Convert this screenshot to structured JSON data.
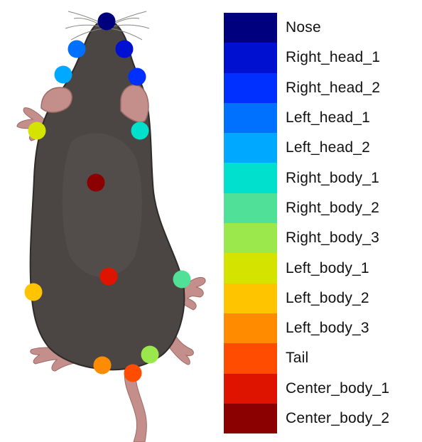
{
  "keypoints": [
    {
      "label": "Nose",
      "color": "#00007f"
    },
    {
      "label": "Right_head_1",
      "color": "#0010d0"
    },
    {
      "label": "Right_head_2",
      "color": "#0030ff"
    },
    {
      "label": "Left_head_1",
      "color": "#0070ff"
    },
    {
      "label": "Left_head_2",
      "color": "#00a8ff"
    },
    {
      "label": "Right_body_1",
      "color": "#00e0cc"
    },
    {
      "label": "Right_body_2",
      "color": "#50e098"
    },
    {
      "label": "Right_body_3",
      "color": "#9ae84c"
    },
    {
      "label": "Left_body_1",
      "color": "#d4e400"
    },
    {
      "label": "Left_body_2",
      "color": "#ffc400"
    },
    {
      "label": "Left_body_3",
      "color": "#ff8c00"
    },
    {
      "label": "Tail",
      "color": "#ff4c00"
    },
    {
      "label": "Center_body_1",
      "color": "#df1400"
    },
    {
      "label": "Center_body_2",
      "color": "#8b0000"
    }
  ],
  "colors": {
    "fur": "#4b4643",
    "fur_dark": "#2f2b29",
    "fur_light": "#5a5451",
    "skin": "#c48f8a",
    "skin_dark": "#9d6a66"
  }
}
